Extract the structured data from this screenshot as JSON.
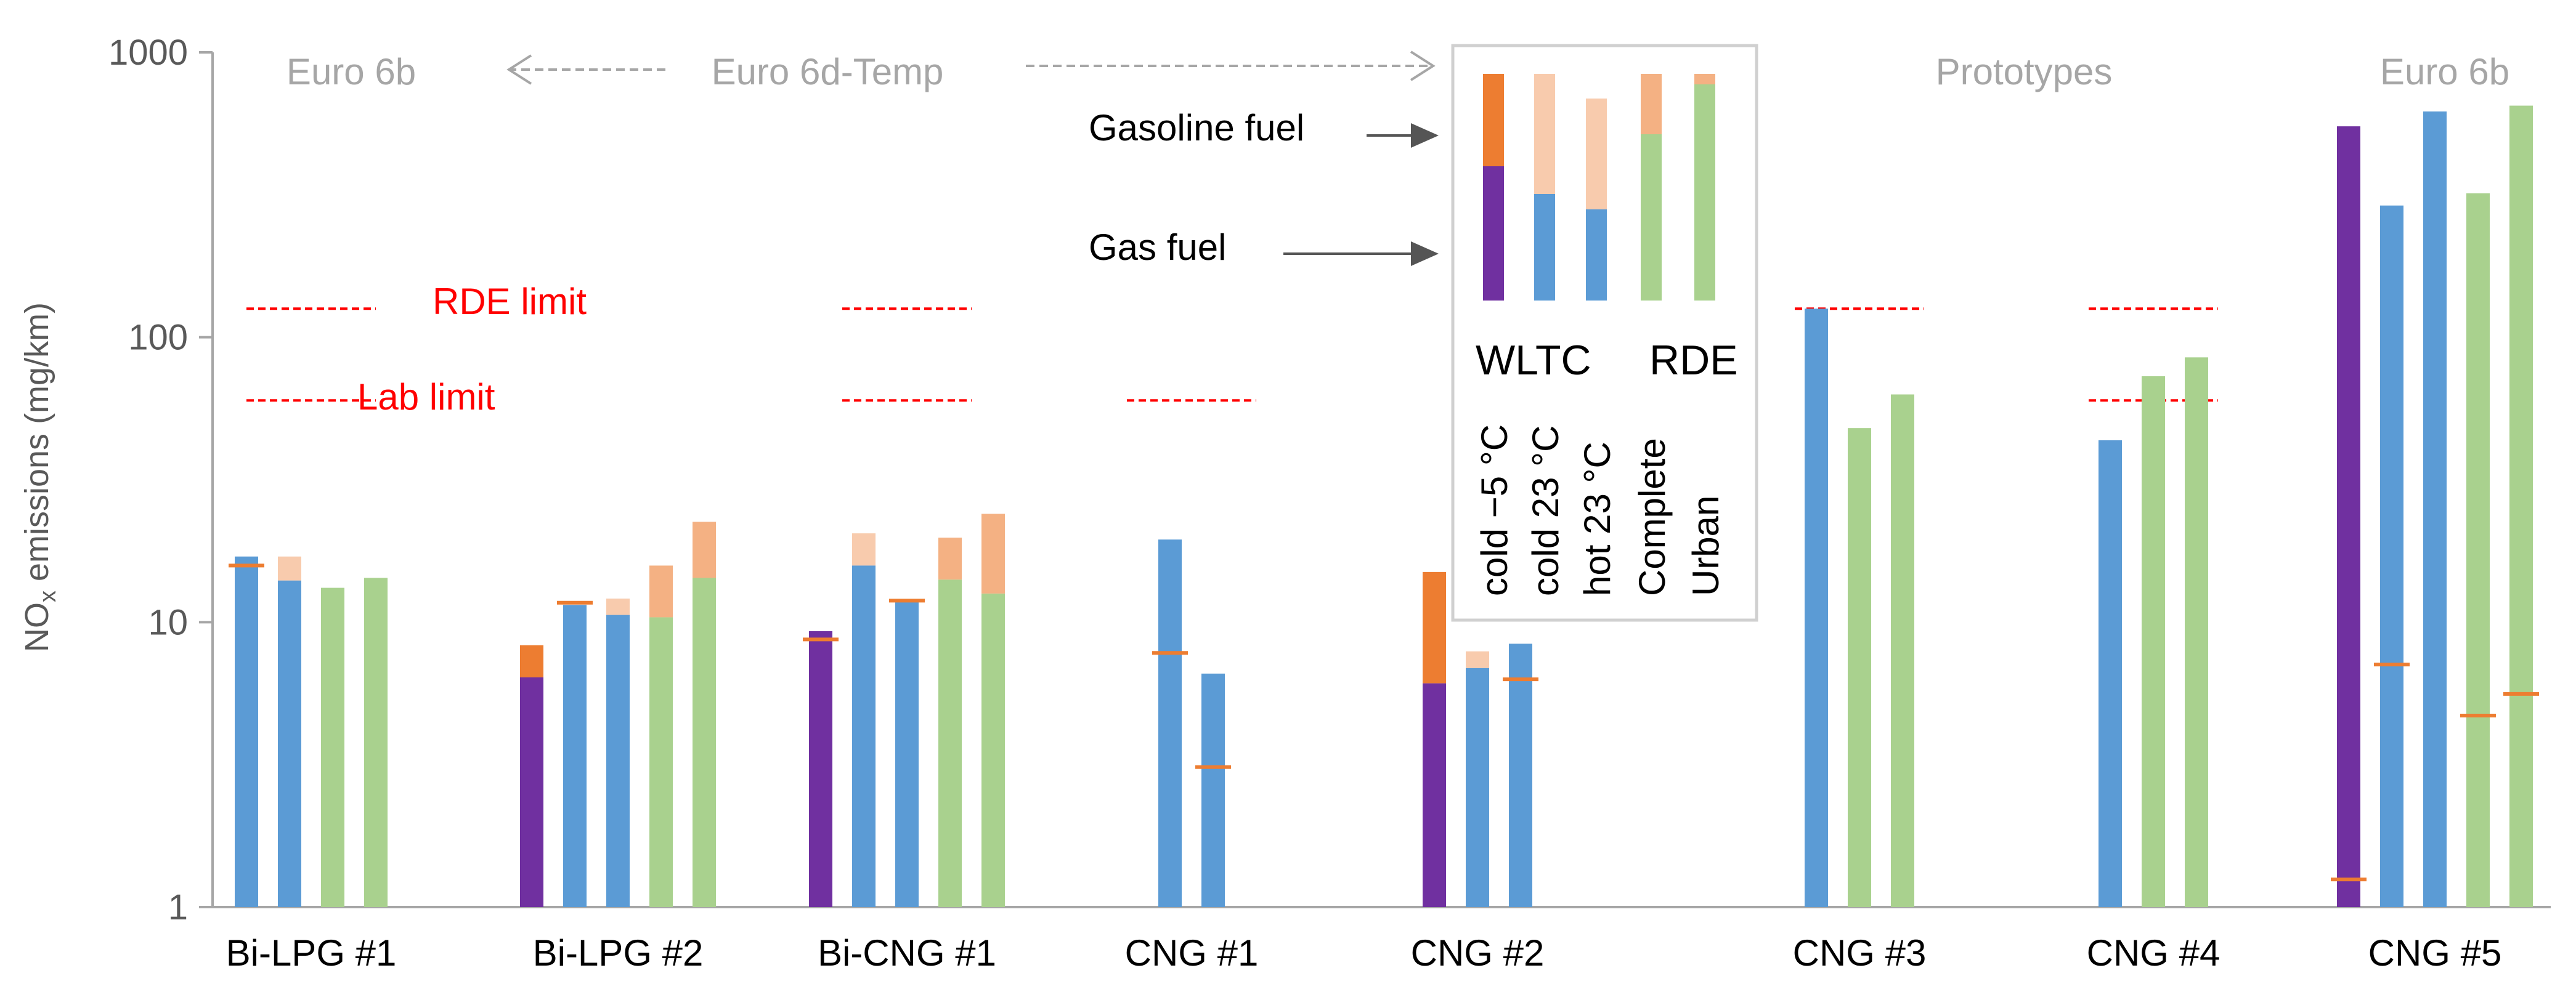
{
  "chart_data": {
    "type": "bar",
    "scale": "log",
    "ylim": [
      1,
      1000
    ],
    "ylabel_main": "NO",
    "ylabel_sub": "x",
    "ylabel_rest": " emissions (mg/km)",
    "yticks": [
      {
        "value": 1,
        "label": "1"
      },
      {
        "value": 10,
        "label": "10"
      },
      {
        "value": 100,
        "label": "100"
      },
      {
        "value": 1000,
        "label": "1000"
      }
    ],
    "series_colors": {
      "cold_m5": {
        "gas": "#7030A0",
        "gasoline": "#ED7D31"
      },
      "cold_23": {
        "gas": "#5B9BD5",
        "gasoline": "#F8CBAD"
      },
      "hot_23": {
        "gas": "#5B9BD5",
        "gasoline": "#F8CBAD"
      },
      "rde_complete": {
        "gas": "#A9D18E",
        "gasoline": "#F4B183"
      },
      "rde_urban": {
        "gas": "#A9D18E",
        "gasoline": "#F4B183"
      }
    },
    "marker_color": "#ED7D31",
    "limit_color": "#FF0000",
    "groups": [
      {
        "label": "Bi-LPG #1",
        "bars": [
          {
            "type": "cold_23",
            "gas": 17,
            "total": 17,
            "marker": 15.8
          },
          {
            "type": "hot_23",
            "gas": 14,
            "total": 17
          },
          {
            "type": "rde_complete",
            "gas": 13.2,
            "total": 13.2
          },
          {
            "type": "rde_urban",
            "gas": 14.3,
            "total": 14.3
          }
        ]
      },
      {
        "label": "Bi-LPG #2",
        "bars": [
          {
            "type": "cold_m5",
            "gas": 6.4,
            "total": 8.3
          },
          {
            "type": "cold_23",
            "gas": 11.5,
            "total": 11.5,
            "marker": 11.7
          },
          {
            "type": "hot_23",
            "gas": 10.6,
            "total": 12.1
          },
          {
            "type": "rde_complete",
            "gas": 10.4,
            "total": 15.8
          },
          {
            "type": "rde_urban",
            "gas": 14.3,
            "total": 22.5
          }
        ]
      },
      {
        "label": "Bi-CNG #1",
        "bars": [
          {
            "type": "cold_m5",
            "gas": 9.3,
            "total": 9.3,
            "marker": 8.7
          },
          {
            "type": "cold_23",
            "gas": 15.8,
            "total": 20.5
          },
          {
            "type": "hot_23",
            "gas": 11.8,
            "total": 11.8,
            "marker": 11.9
          },
          {
            "type": "rde_complete",
            "gas": 14.1,
            "total": 19.8
          },
          {
            "type": "rde_urban",
            "gas": 12.6,
            "total": 24
          }
        ]
      },
      {
        "label": "CNG #1",
        "bars": [
          {
            "type": "cold_23",
            "gas": 19.5,
            "total": 19.5,
            "marker": 7.8
          },
          {
            "type": "hot_23",
            "gas": 6.6,
            "total": 6.6,
            "marker": 3.1
          }
        ]
      },
      {
        "label": "CNG #2",
        "bars": [
          {
            "type": "cold_m5",
            "gas": 6.1,
            "total": 15
          },
          {
            "type": "cold_23",
            "gas": 6.9,
            "total": 7.9
          },
          {
            "type": "hot_23",
            "gas": 8.4,
            "total": 8.4,
            "marker": 6.3
          }
        ]
      },
      {
        "label": "CNG #3",
        "bars": [
          {
            "type": "cold_23",
            "gas": 126,
            "total": 126
          },
          {
            "type": "rde_complete",
            "gas": 48,
            "total": 48
          },
          {
            "type": "rde_urban",
            "gas": 63,
            "total": 63
          }
        ]
      },
      {
        "label": "CNG #4",
        "bars": [
          {
            "type": "cold_23",
            "gas": 43.5,
            "total": 43.5
          },
          {
            "type": "rde_complete",
            "gas": 73,
            "total": 73
          },
          {
            "type": "rde_urban",
            "gas": 85,
            "total": 85
          }
        ]
      },
      {
        "label": "CNG #5",
        "bars": [
          {
            "type": "cold_m5",
            "gas": 550,
            "total": 550,
            "marker": 1.25
          },
          {
            "type": "cold_23",
            "gas": 290,
            "total": 290,
            "marker": 7.1
          },
          {
            "type": "hot_23",
            "gas": 620,
            "total": 620
          },
          {
            "type": "rde_complete",
            "gas": 320,
            "total": 320,
            "marker": 4.7
          },
          {
            "type": "rde_urban",
            "gas": 650,
            "total": 650,
            "marker": 5.6
          }
        ]
      }
    ],
    "categories_text": [
      "Euro 6b",
      "Euro 6d-Temp",
      "Prototypes",
      "Euro 6b"
    ],
    "limits": {
      "rde_label": "RDE limit",
      "lab_label": "Lab limit",
      "rde": [
        {
          "group": 0,
          "value": 126
        },
        {
          "group": 2,
          "value": 126
        },
        {
          "group": 5,
          "value": 126
        },
        {
          "group": 6,
          "value": 126
        }
      ],
      "lab": [
        {
          "group": 0,
          "value": 60
        },
        {
          "group": 2,
          "value": 60
        },
        {
          "group": 3,
          "value": 60
        },
        {
          "group": 6,
          "value": 60
        }
      ]
    },
    "legend": {
      "gasoline_label": "Gasoline fuel",
      "gas_label": "Gas fuel",
      "wltc_label": "WLTC",
      "rde_label": "RDE",
      "col_labels": [
        "cold −5 °C",
        "cold 23 °C",
        "hot 23 °C",
        "Complete",
        "Urban"
      ]
    }
  }
}
